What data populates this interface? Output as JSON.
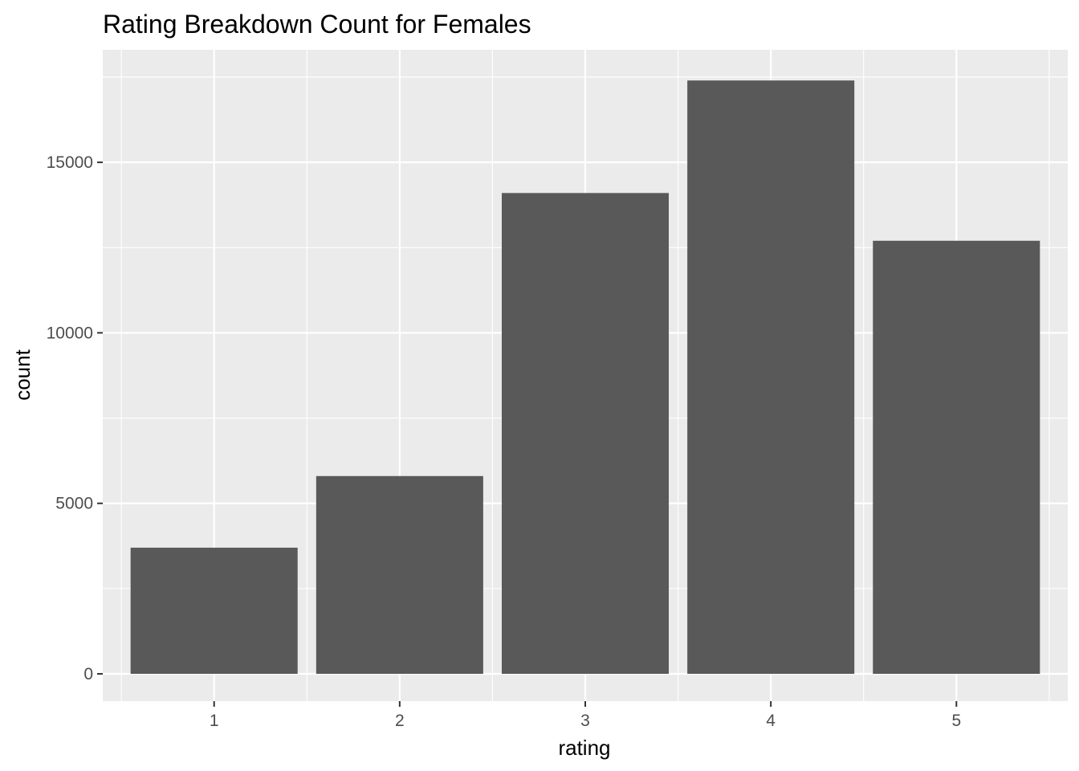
{
  "chart_data": {
    "type": "bar",
    "title": "Rating Breakdown Count for Females",
    "xlabel": "rating",
    "ylabel": "count",
    "categories": [
      "1",
      "2",
      "3",
      "4",
      "5"
    ],
    "values": [
      3700,
      5800,
      14100,
      17400,
      12700
    ],
    "ylim": [
      -800,
      18300
    ],
    "yticks": [
      0,
      5000,
      10000,
      15000
    ],
    "ytick_labels": [
      "0",
      "5000",
      "10000",
      "15000"
    ],
    "grid": true,
    "legend": "none",
    "colors": {
      "bar": "#595959",
      "panel": "#ebebeb",
      "grid": "#ffffff",
      "tick_text": "#4d4d4d"
    }
  }
}
